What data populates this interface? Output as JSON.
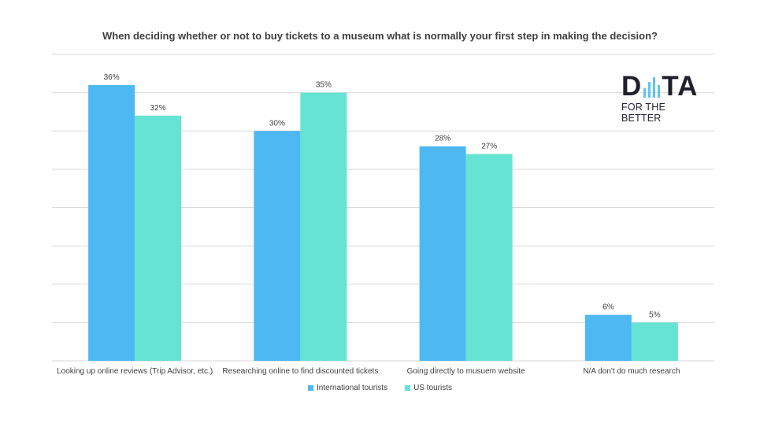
{
  "chart_data": {
    "type": "bar",
    "title": "When deciding whether or not to buy tickets to a museum what is normally your first step in making the decision?",
    "categories": [
      "Looking up online reviews (Trip Advisor, etc.)",
      "Researching online to find discounted tickets",
      "Going directly to musuem website",
      "N/A don't do much research"
    ],
    "series": [
      {
        "name": "International tourists",
        "color": "#4db8f2",
        "values": [
          36,
          30,
          28,
          6
        ]
      },
      {
        "name": "US tourists",
        "color": "#66e3d3",
        "values": [
          32,
          35,
          27,
          5
        ]
      }
    ],
    "value_suffix": "%",
    "ylim": [
      0,
      40
    ],
    "grid": true,
    "legend_position": "bottom"
  },
  "logo": {
    "word_start": "D",
    "word_end": "TA",
    "tagline": "FOR THE BETTER"
  }
}
